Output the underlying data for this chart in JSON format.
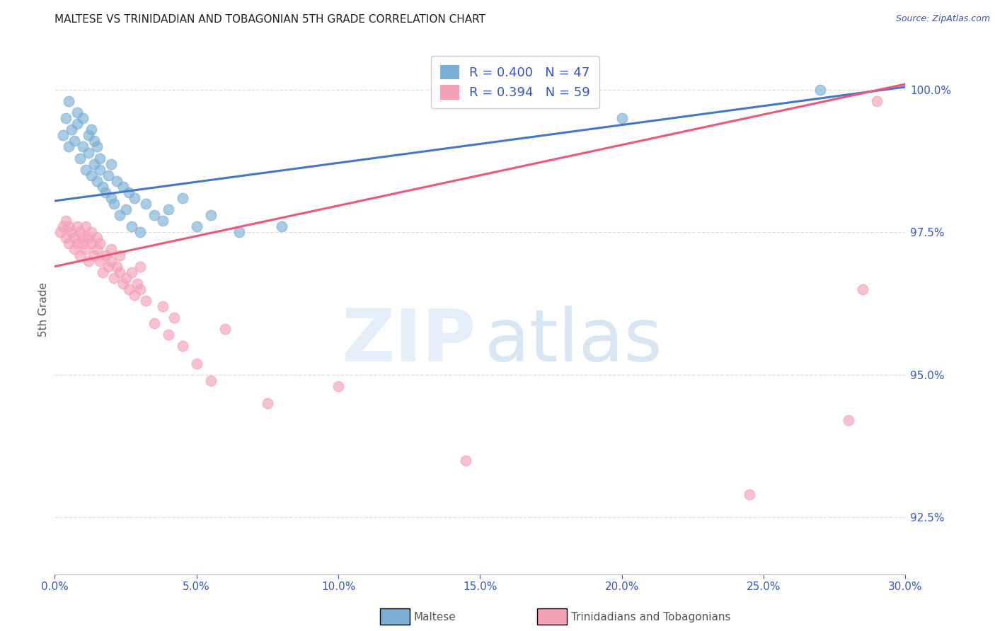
{
  "title": "MALTESE VS TRINIDADIAN AND TOBAGONIAN 5TH GRADE CORRELATION CHART",
  "source": "Source: ZipAtlas.com",
  "ylabel": "5th Grade",
  "xmin": 0.0,
  "xmax": 30.0,
  "ymin": 91.5,
  "ymax": 100.8,
  "yticks": [
    92.5,
    95.0,
    97.5,
    100.0
  ],
  "ytick_labels": [
    "92.5%",
    "95.0%",
    "97.5%",
    "100.0%"
  ],
  "xtick_vals": [
    0.0,
    5.0,
    10.0,
    15.0,
    20.0,
    25.0,
    30.0
  ],
  "xtick_labels": [
    "0.0%",
    "5.0%",
    "10.0%",
    "15.0%",
    "20.0%",
    "25.0%",
    "30.0%"
  ],
  "blue_R": 0.4,
  "blue_N": 47,
  "pink_R": 0.394,
  "pink_N": 59,
  "blue_dot_color": "#7BAFD4",
  "pink_dot_color": "#F4A0B5",
  "blue_line_color": "#4477CC",
  "pink_line_color": "#EE5577",
  "legend_label_blue": "Maltese",
  "legend_label_pink": "Trinidadians and Tobagonians",
  "title_color": "#222222",
  "axis_label_color": "#555555",
  "tick_label_color": "#3355CC",
  "grid_color": "#dddddd",
  "blue_trend_x0": 0.0,
  "blue_trend_y0": 98.05,
  "blue_trend_x1": 30.0,
  "blue_trend_y1": 100.05,
  "pink_trend_x0": 0.0,
  "pink_trend_y0": 96.9,
  "pink_trend_x1": 30.0,
  "pink_trend_y1": 100.1,
  "blue_scatter_x": [
    0.3,
    0.4,
    0.5,
    0.5,
    0.6,
    0.7,
    0.8,
    0.8,
    0.9,
    1.0,
    1.0,
    1.1,
    1.2,
    1.2,
    1.3,
    1.3,
    1.4,
    1.4,
    1.5,
    1.5,
    1.6,
    1.6,
    1.7,
    1.8,
    1.9,
    2.0,
    2.0,
    2.1,
    2.2,
    2.3,
    2.4,
    2.5,
    2.6,
    2.7,
    2.8,
    3.0,
    3.2,
    3.5,
    3.8,
    4.0,
    4.5,
    5.0,
    5.5,
    6.5,
    8.0,
    20.0,
    27.0
  ],
  "blue_scatter_y": [
    99.2,
    99.5,
    99.0,
    99.8,
    99.3,
    99.1,
    99.4,
    99.6,
    98.8,
    99.0,
    99.5,
    98.6,
    99.2,
    98.9,
    98.5,
    99.3,
    98.7,
    99.1,
    98.4,
    99.0,
    98.8,
    98.6,
    98.3,
    98.2,
    98.5,
    98.1,
    98.7,
    98.0,
    98.4,
    97.8,
    98.3,
    97.9,
    98.2,
    97.6,
    98.1,
    97.5,
    98.0,
    97.8,
    97.7,
    97.9,
    98.1,
    97.6,
    97.8,
    97.5,
    97.6,
    99.5,
    100.0
  ],
  "pink_scatter_x": [
    0.2,
    0.3,
    0.4,
    0.4,
    0.5,
    0.5,
    0.6,
    0.7,
    0.7,
    0.8,
    0.8,
    0.9,
    0.9,
    1.0,
    1.0,
    1.1,
    1.1,
    1.2,
    1.2,
    1.3,
    1.3,
    1.4,
    1.5,
    1.5,
    1.6,
    1.6,
    1.7,
    1.8,
    1.9,
    2.0,
    2.0,
    2.1,
    2.2,
    2.3,
    2.3,
    2.4,
    2.5,
    2.6,
    2.7,
    2.8,
    2.9,
    3.0,
    3.0,
    3.2,
    3.5,
    3.8,
    4.0,
    4.2,
    4.5,
    5.0,
    5.5,
    6.0,
    7.5,
    10.0,
    14.5,
    24.5,
    28.0,
    28.5,
    29.0
  ],
  "pink_scatter_y": [
    97.5,
    97.6,
    97.4,
    97.7,
    97.3,
    97.6,
    97.5,
    97.2,
    97.4,
    97.3,
    97.6,
    97.1,
    97.5,
    97.4,
    97.3,
    97.2,
    97.6,
    97.0,
    97.4,
    97.3,
    97.5,
    97.1,
    97.2,
    97.4,
    97.0,
    97.3,
    96.8,
    97.1,
    96.9,
    97.0,
    97.2,
    96.7,
    96.9,
    96.8,
    97.1,
    96.6,
    96.7,
    96.5,
    96.8,
    96.4,
    96.6,
    96.5,
    96.9,
    96.3,
    95.9,
    96.2,
    95.7,
    96.0,
    95.5,
    95.2,
    94.9,
    95.8,
    94.5,
    94.8,
    93.5,
    92.9,
    94.2,
    96.5,
    99.8
  ]
}
